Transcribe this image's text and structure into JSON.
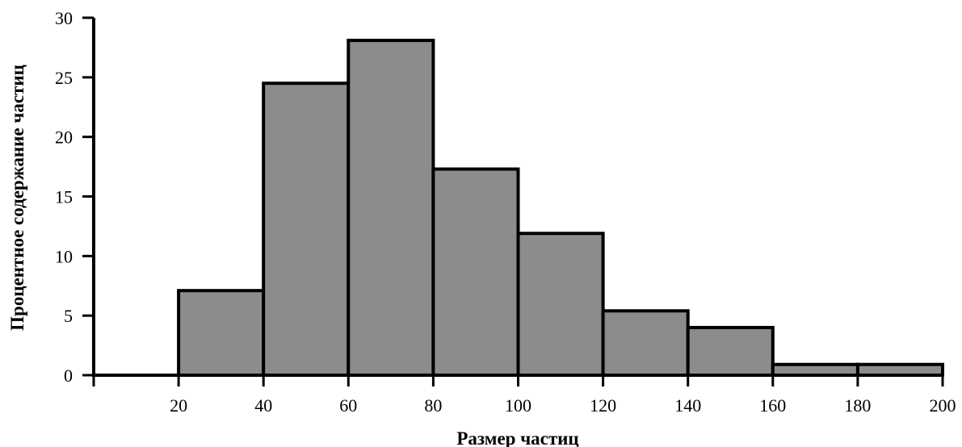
{
  "chart_data": {
    "type": "bar",
    "subtype": "histogram",
    "title": "",
    "xlabel": "Размер частиц",
    "ylabel": "Процентное содержание частиц",
    "bins": [
      {
        "x0": 20,
        "x1": 40,
        "value": 7.1
      },
      {
        "x0": 40,
        "x1": 60,
        "value": 24.5
      },
      {
        "x0": 60,
        "x1": 80,
        "value": 28.1
      },
      {
        "x0": 80,
        "x1": 100,
        "value": 17.3
      },
      {
        "x0": 100,
        "x1": 120,
        "value": 11.9
      },
      {
        "x0": 120,
        "x1": 140,
        "value": 5.4
      },
      {
        "x0": 140,
        "x1": 160,
        "value": 4.0
      },
      {
        "x0": 160,
        "x1": 180,
        "value": 0.9
      },
      {
        "x0": 180,
        "x1": 200,
        "value": 0.9
      }
    ],
    "xlim": [
      0,
      200
    ],
    "ylim": [
      0,
      30
    ],
    "xticks": [
      20,
      40,
      60,
      80,
      100,
      120,
      140,
      160,
      180,
      200
    ],
    "yticks": [
      0,
      5,
      10,
      15,
      20,
      25,
      30
    ],
    "grid": false,
    "legend": "none",
    "colors": {
      "bar_fill": "#8c8c8c",
      "bar_stroke": "#000000",
      "axis": "#000000"
    }
  }
}
